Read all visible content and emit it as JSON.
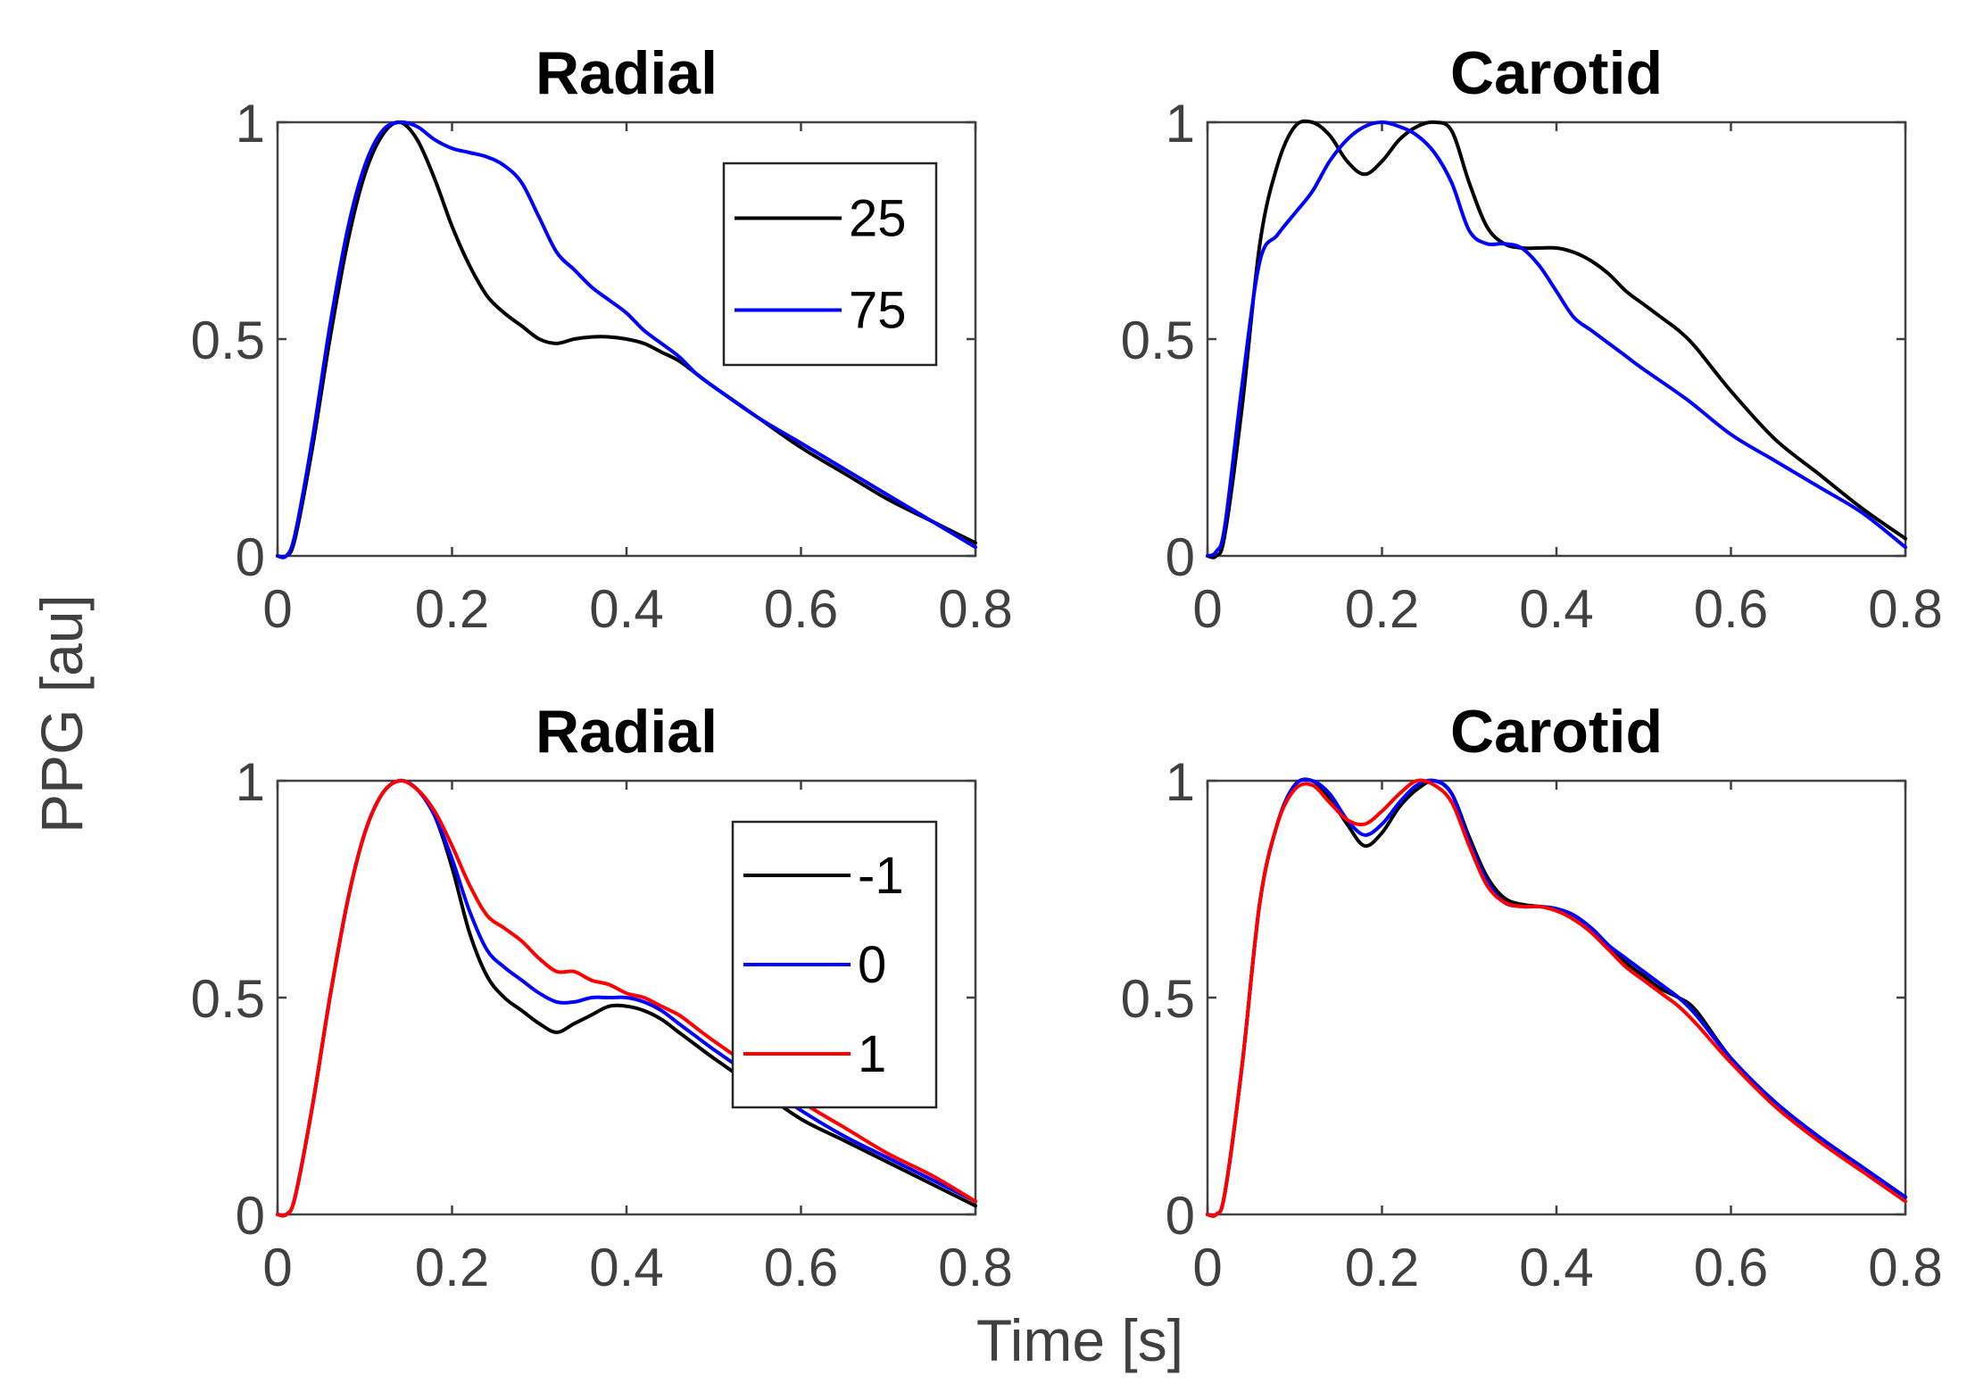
{
  "figure": {
    "ylabel": "PPG [au]",
    "xlabel": "Time [s]"
  },
  "colors": {
    "axes": "#404040",
    "black_series": "#000000",
    "blue_series": "#0000ff",
    "red_series": "#ff0000"
  },
  "chart_data": [
    {
      "type": "line",
      "title": "Radial",
      "xlim": [
        0,
        0.8
      ],
      "ylim": [
        0,
        1
      ],
      "xticks": [
        0,
        0.2,
        0.4,
        0.6,
        0.8
      ],
      "xtick_labels": [
        "0",
        "0.2",
        "0.4",
        "0.6",
        "0.8"
      ],
      "yticks": [
        0,
        0.5,
        1
      ],
      "ytick_labels": [
        "0",
        "0.5",
        "1"
      ],
      "legend_position": "top-right",
      "series": [
        {
          "name": "25",
          "color": "#000000",
          "x": [
            0,
            0.01,
            0.02,
            0.04,
            0.06,
            0.08,
            0.1,
            0.12,
            0.14,
            0.16,
            0.18,
            0.2,
            0.22,
            0.24,
            0.26,
            0.28,
            0.3,
            0.32,
            0.34,
            0.36,
            0.38,
            0.4,
            0.42,
            0.44,
            0.46,
            0.48,
            0.5,
            0.55,
            0.6,
            0.65,
            0.7,
            0.75,
            0.8
          ],
          "y": [
            0,
            0.0,
            0.04,
            0.25,
            0.5,
            0.72,
            0.88,
            0.97,
            1.0,
            0.96,
            0.87,
            0.76,
            0.67,
            0.6,
            0.56,
            0.53,
            0.5,
            0.49,
            0.5,
            0.505,
            0.505,
            0.5,
            0.49,
            0.47,
            0.45,
            0.42,
            0.39,
            0.32,
            0.25,
            0.19,
            0.13,
            0.08,
            0.03
          ]
        },
        {
          "name": "75",
          "color": "#0000ff",
          "x": [
            0,
            0.01,
            0.02,
            0.04,
            0.06,
            0.08,
            0.1,
            0.12,
            0.14,
            0.16,
            0.18,
            0.2,
            0.22,
            0.24,
            0.26,
            0.28,
            0.3,
            0.32,
            0.34,
            0.36,
            0.38,
            0.4,
            0.42,
            0.44,
            0.46,
            0.48,
            0.5,
            0.55,
            0.6,
            0.65,
            0.7,
            0.75,
            0.8
          ],
          "y": [
            0,
            0.0,
            0.05,
            0.27,
            0.53,
            0.75,
            0.9,
            0.98,
            1.0,
            0.99,
            0.96,
            0.94,
            0.93,
            0.92,
            0.9,
            0.86,
            0.78,
            0.7,
            0.66,
            0.62,
            0.59,
            0.56,
            0.52,
            0.49,
            0.46,
            0.42,
            0.39,
            0.32,
            0.26,
            0.2,
            0.14,
            0.08,
            0.02
          ]
        }
      ]
    },
    {
      "type": "line",
      "title": "Carotid",
      "xlim": [
        0,
        0.8
      ],
      "ylim": [
        0,
        1
      ],
      "xticks": [
        0,
        0.2,
        0.4,
        0.6,
        0.8
      ],
      "xtick_labels": [
        "0",
        "0.2",
        "0.4",
        "0.6",
        "0.8"
      ],
      "yticks": [
        0,
        0.5,
        1
      ],
      "ytick_labels": [
        "0",
        "0.5",
        "1"
      ],
      "series": [
        {
          "name": "25",
          "color": "#000000",
          "x": [
            0,
            0.01,
            0.02,
            0.04,
            0.06,
            0.08,
            0.1,
            0.12,
            0.14,
            0.16,
            0.18,
            0.2,
            0.22,
            0.24,
            0.26,
            0.28,
            0.3,
            0.32,
            0.34,
            0.36,
            0.38,
            0.4,
            0.42,
            0.44,
            0.46,
            0.48,
            0.5,
            0.52,
            0.54,
            0.56,
            0.6,
            0.65,
            0.7,
            0.75,
            0.8
          ],
          "y": [
            0,
            0.0,
            0.05,
            0.35,
            0.72,
            0.9,
            0.99,
            1.0,
            0.97,
            0.91,
            0.88,
            0.91,
            0.96,
            0.99,
            1.0,
            0.98,
            0.86,
            0.76,
            0.72,
            0.71,
            0.71,
            0.71,
            0.7,
            0.68,
            0.65,
            0.61,
            0.58,
            0.55,
            0.52,
            0.48,
            0.38,
            0.27,
            0.19,
            0.11,
            0.04
          ]
        },
        {
          "name": "75",
          "color": "#0000ff",
          "x": [
            0,
            0.01,
            0.02,
            0.04,
            0.06,
            0.08,
            0.1,
            0.12,
            0.14,
            0.16,
            0.18,
            0.2,
            0.22,
            0.24,
            0.26,
            0.28,
            0.3,
            0.32,
            0.34,
            0.36,
            0.38,
            0.4,
            0.42,
            0.44,
            0.46,
            0.48,
            0.5,
            0.55,
            0.6,
            0.65,
            0.7,
            0.75,
            0.8
          ],
          "y": [
            0,
            0.01,
            0.07,
            0.4,
            0.68,
            0.74,
            0.79,
            0.84,
            0.91,
            0.96,
            0.99,
            1.0,
            0.99,
            0.97,
            0.93,
            0.86,
            0.75,
            0.72,
            0.72,
            0.71,
            0.67,
            0.61,
            0.55,
            0.52,
            0.49,
            0.46,
            0.43,
            0.36,
            0.28,
            0.22,
            0.16,
            0.1,
            0.02
          ]
        }
      ]
    },
    {
      "type": "line",
      "title": "Radial",
      "xlim": [
        0,
        0.8
      ],
      "ylim": [
        0,
        1
      ],
      "xticks": [
        0,
        0.2,
        0.4,
        0.6,
        0.8
      ],
      "xtick_labels": [
        "0",
        "0.2",
        "0.4",
        "0.6",
        "0.8"
      ],
      "yticks": [
        0,
        0.5,
        1
      ],
      "ytick_labels": [
        "0",
        "0.5",
        "1"
      ],
      "legend_position": "top-right",
      "series": [
        {
          "name": "-1",
          "color": "#000000",
          "x": [
            0,
            0.01,
            0.02,
            0.04,
            0.06,
            0.08,
            0.1,
            0.12,
            0.14,
            0.16,
            0.18,
            0.2,
            0.22,
            0.24,
            0.26,
            0.28,
            0.3,
            0.32,
            0.34,
            0.36,
            0.38,
            0.4,
            0.42,
            0.44,
            0.46,
            0.48,
            0.5,
            0.55,
            0.6,
            0.65,
            0.7,
            0.75,
            0.8
          ],
          "y": [
            0,
            0.0,
            0.04,
            0.25,
            0.5,
            0.72,
            0.88,
            0.97,
            1.0,
            0.98,
            0.92,
            0.8,
            0.65,
            0.55,
            0.5,
            0.47,
            0.44,
            0.42,
            0.44,
            0.46,
            0.48,
            0.48,
            0.47,
            0.45,
            0.42,
            0.39,
            0.36,
            0.29,
            0.22,
            0.17,
            0.12,
            0.07,
            0.02
          ]
        },
        {
          "name": "0",
          "color": "#0000ff",
          "x": [
            0,
            0.01,
            0.02,
            0.04,
            0.06,
            0.08,
            0.1,
            0.12,
            0.14,
            0.16,
            0.18,
            0.2,
            0.22,
            0.24,
            0.26,
            0.28,
            0.3,
            0.32,
            0.34,
            0.36,
            0.38,
            0.4,
            0.42,
            0.44,
            0.46,
            0.48,
            0.5,
            0.55,
            0.6,
            0.65,
            0.7,
            0.75,
            0.8
          ],
          "y": [
            0,
            0.0,
            0.04,
            0.25,
            0.5,
            0.72,
            0.88,
            0.97,
            1.0,
            0.98,
            0.92,
            0.82,
            0.7,
            0.61,
            0.57,
            0.54,
            0.51,
            0.49,
            0.49,
            0.5,
            0.5,
            0.5,
            0.49,
            0.47,
            0.44,
            0.41,
            0.38,
            0.31,
            0.24,
            0.18,
            0.13,
            0.08,
            0.03
          ]
        },
        {
          "name": "1",
          "color": "#ff0000",
          "x": [
            0,
            0.01,
            0.02,
            0.04,
            0.06,
            0.08,
            0.1,
            0.12,
            0.14,
            0.16,
            0.18,
            0.2,
            0.22,
            0.24,
            0.26,
            0.28,
            0.3,
            0.32,
            0.34,
            0.36,
            0.38,
            0.4,
            0.42,
            0.44,
            0.46,
            0.48,
            0.5,
            0.55,
            0.6,
            0.65,
            0.7,
            0.75,
            0.8
          ],
          "y": [
            0,
            0.0,
            0.04,
            0.25,
            0.5,
            0.72,
            0.88,
            0.97,
            1.0,
            0.98,
            0.93,
            0.85,
            0.76,
            0.69,
            0.66,
            0.63,
            0.59,
            0.56,
            0.56,
            0.54,
            0.53,
            0.51,
            0.5,
            0.48,
            0.46,
            0.43,
            0.4,
            0.33,
            0.26,
            0.2,
            0.14,
            0.09,
            0.03
          ]
        }
      ]
    },
    {
      "type": "line",
      "title": "Carotid",
      "xlim": [
        0,
        0.8
      ],
      "ylim": [
        0,
        1
      ],
      "xticks": [
        0,
        0.2,
        0.4,
        0.6,
        0.8
      ],
      "xtick_labels": [
        "0",
        "0.2",
        "0.4",
        "0.6",
        "0.8"
      ],
      "yticks": [
        0,
        0.5,
        1
      ],
      "ytick_labels": [
        "0",
        "0.5",
        "1"
      ],
      "series": [
        {
          "name": "-1",
          "color": "#000000",
          "x": [
            0,
            0.01,
            0.02,
            0.04,
            0.06,
            0.08,
            0.1,
            0.12,
            0.14,
            0.16,
            0.18,
            0.2,
            0.22,
            0.24,
            0.26,
            0.28,
            0.3,
            0.32,
            0.34,
            0.36,
            0.38,
            0.4,
            0.42,
            0.44,
            0.46,
            0.48,
            0.5,
            0.52,
            0.54,
            0.56,
            0.6,
            0.65,
            0.7,
            0.75,
            0.8
          ],
          "y": [
            0,
            0.0,
            0.05,
            0.35,
            0.72,
            0.9,
            0.99,
            1.0,
            0.96,
            0.9,
            0.85,
            0.88,
            0.94,
            0.98,
            1.0,
            0.97,
            0.87,
            0.78,
            0.73,
            0.715,
            0.71,
            0.705,
            0.69,
            0.66,
            0.62,
            0.58,
            0.55,
            0.52,
            0.5,
            0.47,
            0.36,
            0.26,
            0.18,
            0.11,
            0.04
          ]
        },
        {
          "name": "0",
          "color": "#0000ff",
          "x": [
            0,
            0.01,
            0.02,
            0.04,
            0.06,
            0.08,
            0.1,
            0.12,
            0.14,
            0.16,
            0.18,
            0.2,
            0.22,
            0.24,
            0.26,
            0.28,
            0.3,
            0.32,
            0.34,
            0.36,
            0.38,
            0.4,
            0.42,
            0.44,
            0.46,
            0.48,
            0.5,
            0.52,
            0.54,
            0.56,
            0.6,
            0.65,
            0.7,
            0.75,
            0.8
          ],
          "y": [
            0,
            0.0,
            0.05,
            0.35,
            0.72,
            0.9,
            0.99,
            1.0,
            0.97,
            0.91,
            0.875,
            0.9,
            0.95,
            0.99,
            1.0,
            0.97,
            0.86,
            0.77,
            0.72,
            0.71,
            0.71,
            0.705,
            0.69,
            0.66,
            0.62,
            0.59,
            0.56,
            0.53,
            0.5,
            0.46,
            0.36,
            0.26,
            0.18,
            0.11,
            0.04
          ]
        },
        {
          "name": "1",
          "color": "#ff0000",
          "x": [
            0,
            0.01,
            0.02,
            0.04,
            0.06,
            0.08,
            0.1,
            0.12,
            0.14,
            0.16,
            0.18,
            0.2,
            0.22,
            0.24,
            0.26,
            0.28,
            0.3,
            0.32,
            0.34,
            0.36,
            0.38,
            0.4,
            0.42,
            0.44,
            0.46,
            0.48,
            0.5,
            0.52,
            0.54,
            0.56,
            0.6,
            0.65,
            0.7,
            0.75,
            0.8
          ],
          "y": [
            0,
            0.0,
            0.05,
            0.35,
            0.72,
            0.9,
            0.98,
            0.99,
            0.95,
            0.91,
            0.9,
            0.93,
            0.97,
            1.0,
            0.99,
            0.95,
            0.85,
            0.76,
            0.72,
            0.71,
            0.71,
            0.7,
            0.68,
            0.65,
            0.61,
            0.57,
            0.54,
            0.51,
            0.48,
            0.44,
            0.35,
            0.25,
            0.17,
            0.1,
            0.03
          ]
        }
      ]
    }
  ]
}
